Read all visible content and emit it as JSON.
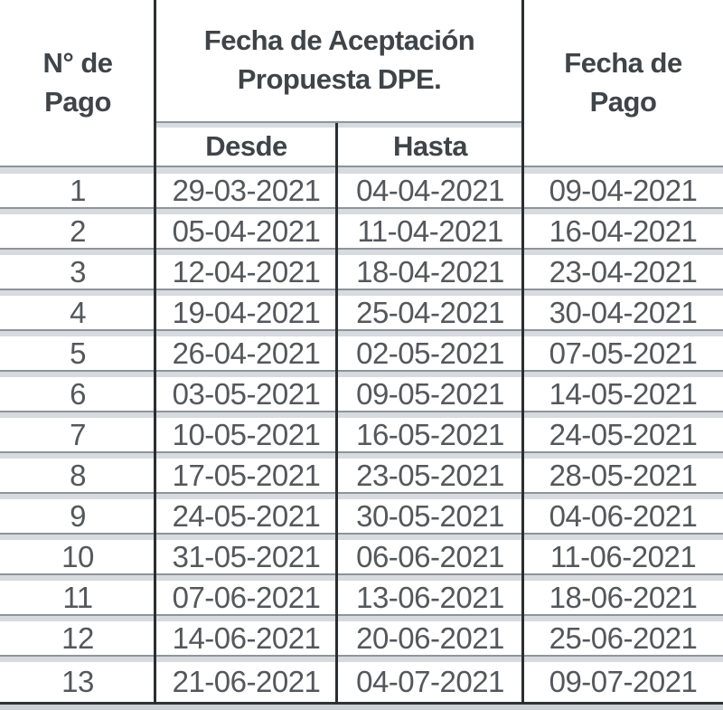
{
  "table": {
    "headers": {
      "num_pago": "N° de\nPago",
      "aceptacion": "Fecha de Aceptación\nPropuesta DPE.",
      "desde": "Desde",
      "hasta": "Hasta",
      "fecha_pago": "Fecha de\nPago"
    },
    "rows": [
      {
        "num": "1",
        "desde": "29-03-2021",
        "hasta": "04-04-2021",
        "pago": "09-04-2021"
      },
      {
        "num": "2",
        "desde": "05-04-2021",
        "hasta": "11-04-2021",
        "pago": "16-04-2021"
      },
      {
        "num": "3",
        "desde": "12-04-2021",
        "hasta": "18-04-2021",
        "pago": "23-04-2021"
      },
      {
        "num": "4",
        "desde": "19-04-2021",
        "hasta": "25-04-2021",
        "pago": "30-04-2021"
      },
      {
        "num": "5",
        "desde": "26-04-2021",
        "hasta": "02-05-2021",
        "pago": "07-05-2021"
      },
      {
        "num": "6",
        "desde": "03-05-2021",
        "hasta": "09-05-2021",
        "pago": "14-05-2021"
      },
      {
        "num": "7",
        "desde": "10-05-2021",
        "hasta": "16-05-2021",
        "pago": "24-05-2021"
      },
      {
        "num": "8",
        "desde": "17-05-2021",
        "hasta": "23-05-2021",
        "pago": "28-05-2021"
      },
      {
        "num": "9",
        "desde": "24-05-2021",
        "hasta": "30-05-2021",
        "pago": "04-06-2021"
      },
      {
        "num": "10",
        "desde": "31-05-2021",
        "hasta": "06-06-2021",
        "pago": "11-06-2021"
      },
      {
        "num": "11",
        "desde": "07-06-2021",
        "hasta": "13-06-2021",
        "pago": "18-06-2021"
      },
      {
        "num": "12",
        "desde": "14-06-2021",
        "hasta": "20-06-2021",
        "pago": "25-06-2021"
      },
      {
        "num": "13",
        "desde": "21-06-2021",
        "hasta": "04-07-2021",
        "pago": "09-07-2021"
      }
    ],
    "colors": {
      "column_divider": "#2b2e31",
      "row_separator_line": "#8d949a",
      "row_separator_band": "#d7dade",
      "header_text": "#3f4448",
      "cell_text": "#54575b"
    }
  }
}
